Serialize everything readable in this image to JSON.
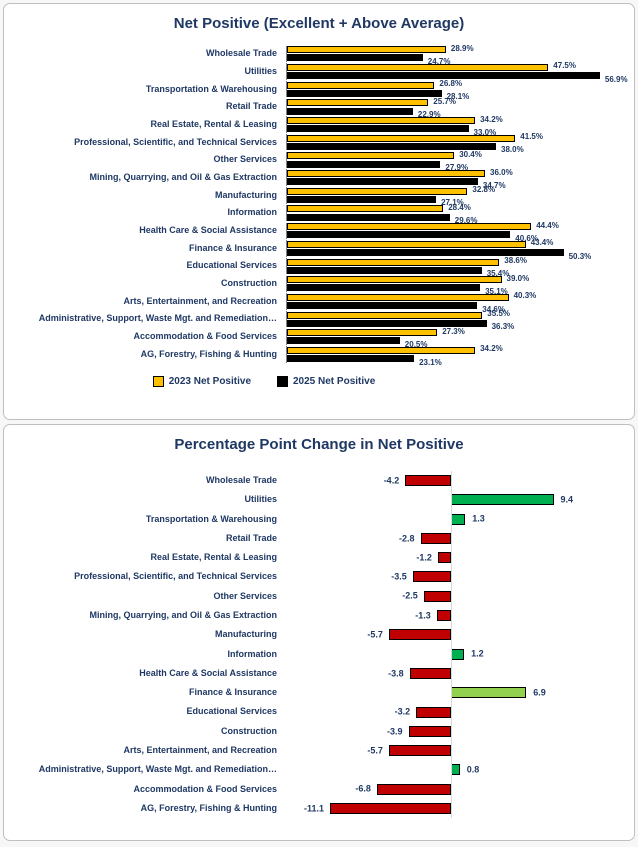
{
  "colors": {
    "text_navy": "#1F3864",
    "gold": "#FFC000",
    "black": "#000000",
    "red": "#C00000",
    "green": "#00B050",
    "light_green": "#92D050",
    "panel_border": "#bfbfbf",
    "axis_top": "#7f7f7f",
    "axis_bottom": "#d9d9d9"
  },
  "chart_data": [
    {
      "type": "bar",
      "orientation": "horizontal",
      "title": "Net Positive (Excellent + Above Average)",
      "value_suffix": "%",
      "xlim": [
        0,
        60
      ],
      "grid": false,
      "legend_position": "bottom",
      "categories": [
        "Wholesale Trade",
        "Utilities",
        "Transportation & Warehousing",
        "Retail Trade",
        "Real Estate, Rental & Leasing",
        "Professional, Scientific, and Technical Services",
        "Other Services",
        "Mining, Quarrying, and Oil & Gas Extraction",
        "Manufacturing",
        "Information",
        "Health Care & Social Assistance",
        "Finance & Insurance",
        "Educational Services",
        "Construction",
        "Arts, Entertainment, and Recreation",
        "Administrative, Support, Waste Mgt. and Remediation…",
        "Accommodation & Food Services",
        "AG, Forestry, Fishing & Hunting"
      ],
      "series": [
        {
          "name": "2023 Net Positive",
          "color": "#FFC000",
          "values": [
            28.9,
            47.5,
            26.8,
            25.7,
            34.2,
            41.5,
            30.4,
            36.0,
            32.8,
            28.4,
            44.4,
            43.4,
            38.6,
            39.0,
            40.3,
            35.5,
            27.3,
            34.2
          ]
        },
        {
          "name": "2025 Net Positive",
          "color": "#000000",
          "values": [
            24.7,
            56.9,
            28.1,
            22.9,
            33.0,
            38.0,
            27.9,
            34.7,
            27.1,
            29.6,
            40.6,
            50.3,
            35.4,
            35.1,
            34.6,
            36.3,
            20.5,
            23.1
          ]
        }
      ]
    },
    {
      "type": "bar",
      "orientation": "horizontal",
      "title": "Percentage Point Change in Net Positive",
      "xlim": [
        -12,
        10
      ],
      "grid": false,
      "categories": [
        "Wholesale Trade",
        "Utilities",
        "Transportation & Warehousing",
        "Retail Trade",
        "Real Estate, Rental & Leasing",
        "Professional, Scientific, and Technical Services",
        "Other Services",
        "Mining, Quarrying, and Oil & Gas Extraction",
        "Manufacturing",
        "Information",
        "Health Care & Social Assistance",
        "Finance & Insurance",
        "Educational Services",
        "Construction",
        "Arts, Entertainment, and Recreation",
        "Administrative, Support, Waste Mgt. and Remediation…",
        "Accommodation & Food Services",
        "AG, Forestry, Fishing & Hunting"
      ],
      "values": [
        -4.2,
        9.4,
        1.3,
        -2.8,
        -1.2,
        -3.5,
        -2.5,
        -1.3,
        -5.7,
        1.2,
        -3.8,
        6.9,
        -3.2,
        -3.9,
        -5.7,
        0.8,
        -6.8,
        -11.1
      ],
      "bar_colors": [
        "#C00000",
        "#00B050",
        "#00B050",
        "#C00000",
        "#C00000",
        "#C00000",
        "#C00000",
        "#C00000",
        "#C00000",
        "#00B050",
        "#C00000",
        "#92D050",
        "#C00000",
        "#C00000",
        "#C00000",
        "#00B050",
        "#C00000",
        "#C00000"
      ]
    }
  ]
}
